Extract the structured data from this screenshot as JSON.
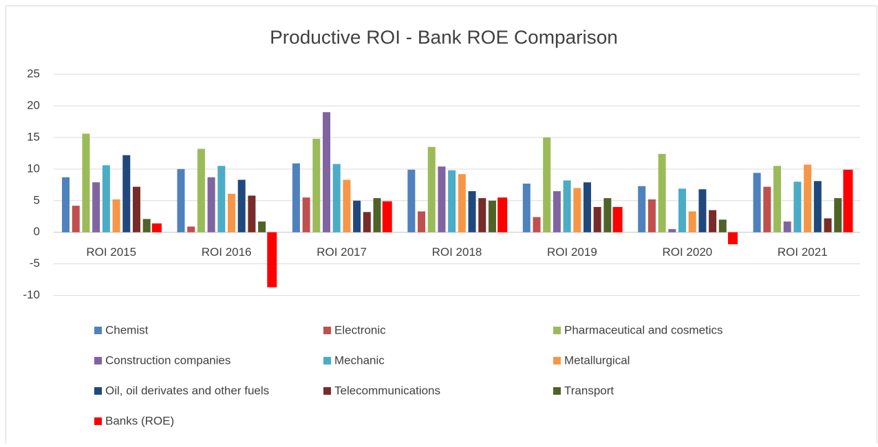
{
  "chart_data": {
    "type": "bar",
    "title": "Productive ROI - Bank ROE Comparison",
    "categories": [
      "ROI 2015",
      "ROI 2016",
      "ROI 2017",
      "ROI 2018",
      "ROI 2019",
      "ROI 2020",
      "ROI 2021"
    ],
    "series": [
      {
        "name": "Chemist",
        "color": "#4f81bd",
        "values": [
          8.7,
          10.0,
          10.9,
          9.9,
          7.7,
          7.3,
          9.4
        ]
      },
      {
        "name": "Electronic",
        "color": "#c0504d",
        "values": [
          4.2,
          0.9,
          5.5,
          3.3,
          2.4,
          5.2,
          7.2
        ]
      },
      {
        "name": "Pharmaceutical and cosmetics",
        "color": "#9bbb59",
        "values": [
          15.6,
          13.2,
          14.8,
          13.5,
          15.0,
          12.4,
          10.5
        ]
      },
      {
        "name": "Construction companies",
        "color": "#8064a2",
        "values": [
          7.9,
          8.7,
          19.0,
          10.4,
          6.5,
          0.5,
          1.7
        ]
      },
      {
        "name": "Mechanic",
        "color": "#4bacc6",
        "values": [
          10.6,
          10.5,
          10.8,
          9.8,
          8.2,
          6.9,
          8.0
        ]
      },
      {
        "name": "Metallurgical",
        "color": "#f79646",
        "values": [
          5.2,
          6.1,
          8.3,
          9.2,
          7.0,
          3.3,
          10.7
        ]
      },
      {
        "name": "Oil, oil derivates and other fuels",
        "color": "#1f497d",
        "values": [
          12.2,
          8.3,
          5.0,
          6.5,
          7.9,
          6.8,
          8.1
        ]
      },
      {
        "name": "Telecommunications",
        "color": "#772c2a",
        "values": [
          7.2,
          5.8,
          3.2,
          5.4,
          4.0,
          3.5,
          2.2
        ]
      },
      {
        "name": "Transport",
        "color": "#4f6228",
        "values": [
          2.1,
          1.7,
          5.4,
          5.0,
          5.4,
          2.0,
          5.4
        ]
      },
      {
        "name": "Banks (ROE)",
        "color": "#ff0000",
        "values": [
          1.4,
          -8.7,
          4.9,
          5.5,
          4.0,
          -1.9,
          9.9
        ]
      }
    ],
    "ylim": [
      -12,
      25
    ],
    "yticks": [
      -10,
      -5,
      0,
      5,
      10,
      15,
      20,
      25
    ],
    "grid": true,
    "legend": "bottom"
  }
}
